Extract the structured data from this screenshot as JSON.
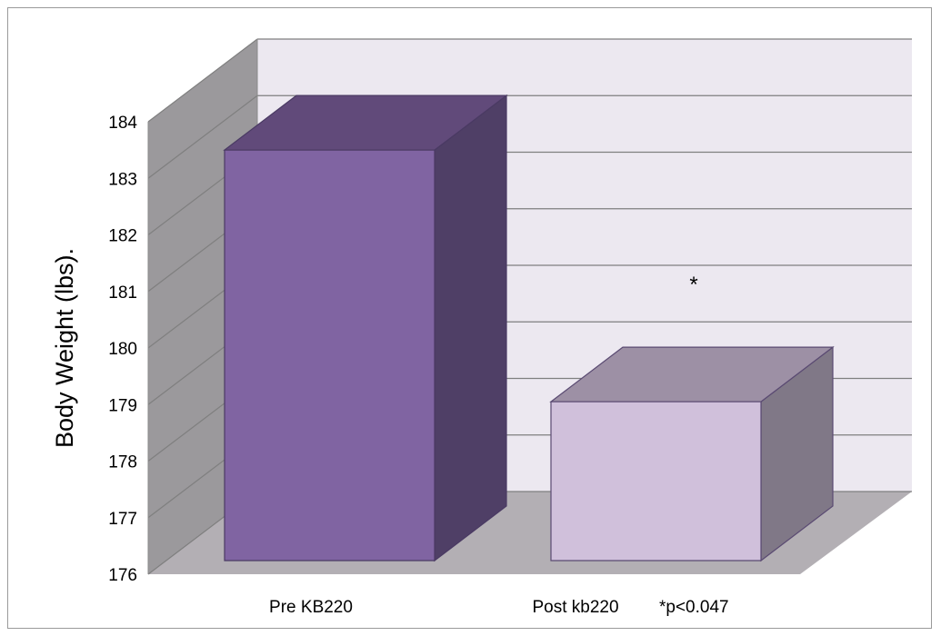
{
  "chart_data": {
    "type": "bar",
    "style": "3d-column",
    "categories": [
      "Pre KB220",
      "Post kb220"
    ],
    "values": [
      183.5,
      179.05
    ],
    "ylabel": "Body Weight (lbs).",
    "xlabel": "",
    "ylim": [
      176,
      184
    ],
    "yticks": [
      "176",
      "177",
      "178",
      "179",
      "180",
      "181",
      "182",
      "183",
      "184"
    ],
    "grid": true,
    "legend": "none",
    "significance_marker": "*",
    "footnote": "*p<0.047",
    "colors": {
      "bar1_front": "#8064a2",
      "bar1_top": "#614a7a",
      "bar1_side": "#4f3f66",
      "bar2_front": "#d0c0db",
      "bar2_top": "#9d90a5",
      "bar2_side": "#807887",
      "back_wall": "#ece8f0",
      "side_wall": "#9b999c",
      "floor": "#b3afb4",
      "gridline": "#7f7f7f"
    }
  }
}
